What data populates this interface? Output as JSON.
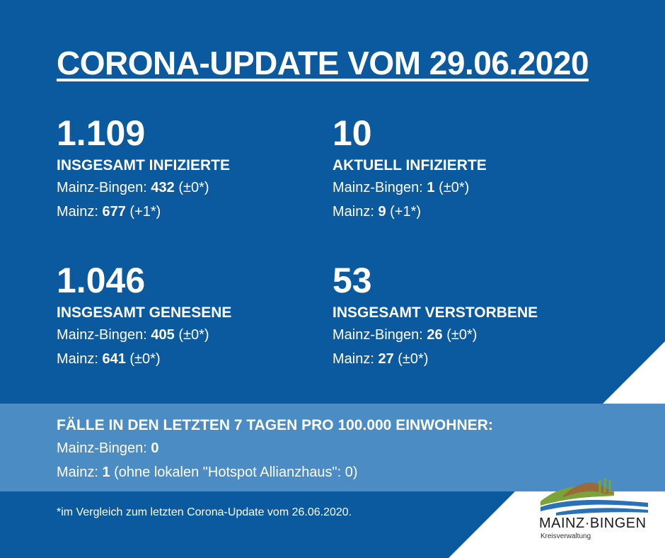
{
  "title": "CORONA-UPDATE VOM 29.06.2020",
  "stats": [
    {
      "number": "1.109",
      "label": "INSGESAMT INFIZIERTE",
      "lines": [
        {
          "prefix": "Mainz-Bingen: ",
          "value": "432",
          "suffix": " (±0*)"
        },
        {
          "prefix": "Mainz: ",
          "value": "677",
          "suffix": " (+1*)"
        }
      ]
    },
    {
      "number": "10",
      "label": "AKTUELL INFIZIERTE",
      "lines": [
        {
          "prefix": "Mainz-Bingen: ",
          "value": "1",
          "suffix": " (±0*)"
        },
        {
          "prefix": "Mainz: ",
          "value": "9",
          "suffix": " (+1*)"
        }
      ]
    },
    {
      "number": "1.046",
      "label": "INSGESAMT GENESENE",
      "lines": [
        {
          "prefix": "Mainz-Bingen: ",
          "value": "405",
          "suffix": " (±0*)"
        },
        {
          "prefix": "Mainz: ",
          "value": "641",
          "suffix": " (±0*)"
        }
      ]
    },
    {
      "number": "53",
      "label": "INSGESAMT VERSTORBENE",
      "lines": [
        {
          "prefix": "Mainz-Bingen: ",
          "value": "26",
          "suffix": " (±0*)"
        },
        {
          "prefix": "Mainz: ",
          "value": "27",
          "suffix": " (±0*)"
        }
      ]
    }
  ],
  "incidence": {
    "heading": "FÄLLE IN DEN LETZTEN 7 TAGEN PRO 100.000 EINWOHNER:",
    "lines": [
      {
        "prefix": "Mainz-Bingen: ",
        "value": "0",
        "suffix": ""
      },
      {
        "prefix": "Mainz: ",
        "value": "1",
        "suffix": " (ohne lokalen \"Hotspot Allianzhaus\": 0)"
      }
    ]
  },
  "footnote": "*im Vergleich zum letzten Corona-Update vom 26.06.2020.",
  "logo": {
    "name": "MAINZ·BINGEN",
    "subtitle": "Kreisverwaltung"
  },
  "colors": {
    "background": "#0b5aa0",
    "band": "#4a8cc3",
    "corner": "#ffffff",
    "logo_blue": "#2a72b5",
    "logo_green": "#7aa33a",
    "logo_brown": "#9a6a3a"
  }
}
